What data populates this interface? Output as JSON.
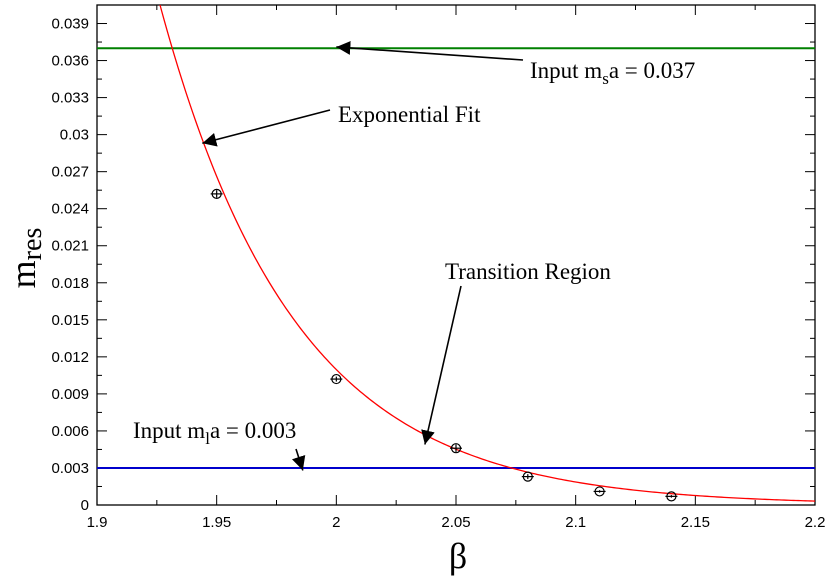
{
  "chart_data": {
    "type": "scatter",
    "xlabel": "β",
    "ylabel": {
      "main": "m",
      "sub": "res"
    },
    "xlim": [
      1.9,
      2.2
    ],
    "ylim": [
      0,
      0.0405
    ],
    "x_ticks": [
      1.9,
      1.95,
      2.0,
      2.05,
      2.1,
      2.15,
      2.2
    ],
    "x_tick_labels": [
      "1.9",
      "1.95",
      "2",
      "2.05",
      "2.1",
      "2.15",
      "2.2"
    ],
    "y_ticks": [
      0,
      0.003,
      0.006,
      0.009,
      0.012,
      0.015,
      0.018,
      0.021,
      0.024,
      0.027,
      0.03,
      0.033,
      0.036,
      0.039
    ],
    "y_tick_labels": [
      "0",
      "0.003",
      "0.006",
      "0.009",
      "0.012",
      "0.015",
      "0.018",
      "0.021",
      "0.024",
      "0.027",
      "0.03",
      "0.033",
      "0.036",
      "0.039"
    ],
    "grid": false,
    "points": [
      {
        "x": 1.95,
        "y": 0.0252,
        "err": 0.0003
      },
      {
        "x": 2.0,
        "y": 0.0102,
        "err": 0.0002
      },
      {
        "x": 2.05,
        "y": 0.0046,
        "err": 0.0003
      },
      {
        "x": 2.08,
        "y": 0.0023,
        "err": 0.0002
      },
      {
        "x": 2.11,
        "y": 0.0011,
        "err": 0.0001
      },
      {
        "x": 2.14,
        "y": 0.0007,
        "err": 0.0001
      }
    ],
    "fit": {
      "form": "A*exp(-B*(x-1.9))",
      "A": 0.0646,
      "B": 17.73,
      "color": "#ff0000"
    },
    "reference_lines": [
      {
        "y": 0.037,
        "color": "#008000"
      },
      {
        "y": 0.003,
        "color": "#0000cc"
      }
    ],
    "annotations": [
      {
        "parts": [
          {
            "t": "Input m"
          },
          {
            "t": "s",
            "sub": true
          },
          {
            "t": "a = 0.037"
          }
        ],
        "target_x": 2.0,
        "target_y": 0.0371
      },
      {
        "parts": [
          {
            "t": "Exponential Fit"
          }
        ],
        "target_x": 1.944,
        "target_y": 0.0293
      },
      {
        "parts": [
          {
            "t": "Transition Region"
          }
        ],
        "target_x": 2.037,
        "target_y": 0.0049
      },
      {
        "parts": [
          {
            "t": "Input m"
          },
          {
            "t": "l",
            "sub": true
          },
          {
            "t": "a = 0.003"
          }
        ],
        "target_x": 1.986,
        "target_y": 0.0028
      }
    ]
  }
}
